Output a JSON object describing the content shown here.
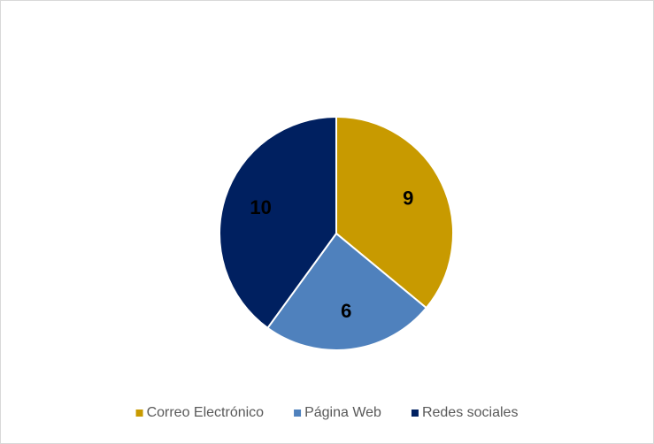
{
  "chart_data": {
    "type": "pie",
    "categories": [
      "Correo Electrónico",
      "Página Web",
      "Redes sociales"
    ],
    "values": [
      9,
      6,
      10
    ],
    "colors": [
      "#C89A00",
      "#4F81BD",
      "#002060"
    ],
    "legend": "bottom"
  }
}
